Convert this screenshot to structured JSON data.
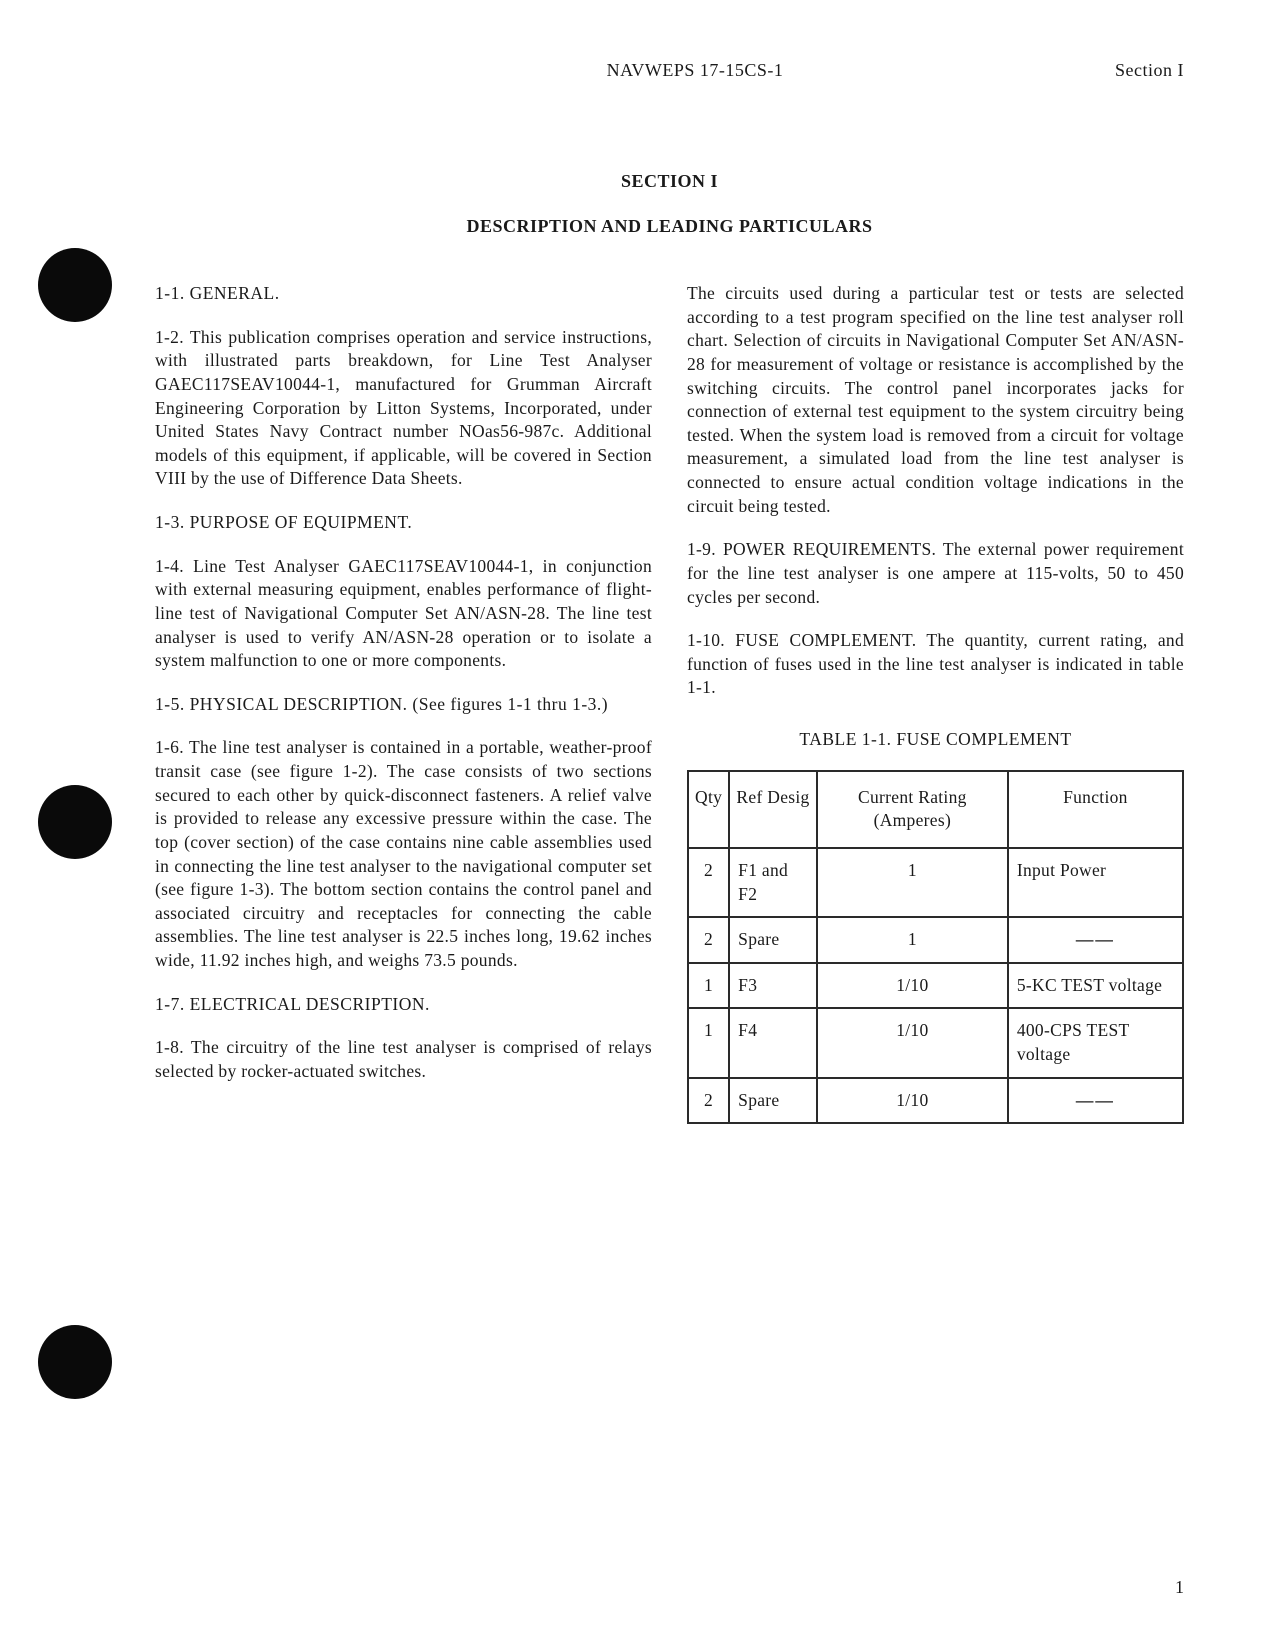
{
  "header": {
    "center": "NAVWEPS 17-15CS-1",
    "right": "Section I"
  },
  "section_title": "SECTION I",
  "section_subtitle": "DESCRIPTION AND LEADING PARTICULARS",
  "left": {
    "h1": "1-1.  GENERAL.",
    "p2": "1-2.  This publication comprises operation and service instructions, with illustrated parts breakdown, for Line Test Analyser GAEC117SEAV10044-1, manufactured for Grumman Aircraft Engineering Corporation by Litton Systems, Incorporated, under United States Navy Contract number NOas56-987c.  Additional models of this equipment, if applicable, will be covered in Section VIII by the use of Difference Data Sheets.",
    "h3": "1-3.  PURPOSE OF EQUIPMENT.",
    "p4": "1-4.  Line Test Analyser GAEC117SEAV10044-1, in conjunction with external measuring equipment, enables performance of flight-line test of Navigational Computer Set AN/ASN-28.  The line test analyser is used to verify AN/ASN-28 operation or to isolate a system malfunction to one or more components.",
    "h5": "1-5.  PHYSICAL DESCRIPTION.  (See figures 1-1 thru 1-3.)",
    "p6": "1-6.  The line test analyser is contained in a portable, weather-proof transit case (see figure 1-2).  The case consists of two sections secured to each other by quick-disconnect fasteners.  A relief valve is provided to release any excessive pressure within the case.   The top (cover section) of the case contains nine cable assemblies used in connecting the line test analyser to the navigational computer set (see figure 1-3).  The bottom section contains the control panel and associated circuitry and receptacles for connecting the cable assemblies.  The line test analyser is 22.5 inches long, 19.62 inches wide, 11.92 inches high, and weighs 73.5 pounds.",
    "h7": "1-7.  ELECTRICAL DESCRIPTION.",
    "p8": "1-8.  The circuitry of the line test analyser is comprised of relays selected by rocker-actuated switches."
  },
  "right": {
    "p_cont": "The circuits used during a particular test or tests are selected according to a test program specified on the line test analyser roll chart.  Selection of circuits in Navigational Computer Set AN/ASN-28 for measurement of voltage or resistance is accomplished by the switching circuits.   The control panel incorporates jacks for connection of external test equipment to the system circuitry being tested.  When the system load is removed from a circuit for voltage measurement, a simulated load from the line test analyser is connected to ensure actual condition voltage indications in the circuit being tested.",
    "p9": "1-9.  POWER REQUIREMENTS.  The external power requirement for the line test analyser is one ampere at 115-volts, 50 to 450 cycles per second.",
    "p10": "1-10.  FUSE COMPLEMENT.  The quantity, current rating, and function of fuses used in the line test analyser is indicated in table 1-1."
  },
  "table": {
    "caption": "TABLE 1-1.   FUSE COMPLEMENT",
    "headers": [
      "Qty",
      "Ref Desig",
      "Current Rating (Amperes)",
      "Function"
    ],
    "rows": [
      [
        "2",
        "F1 and F2",
        "1",
        "Input Power"
      ],
      [
        "2",
        "Spare",
        "1",
        "——"
      ],
      [
        "1",
        "F3",
        "1/10",
        "5-KC TEST voltage"
      ],
      [
        "1",
        "F4",
        "1/10",
        "400-CPS TEST voltage"
      ],
      [
        "2",
        "Spare",
        "1/10",
        "——"
      ]
    ]
  },
  "page_number": "1"
}
